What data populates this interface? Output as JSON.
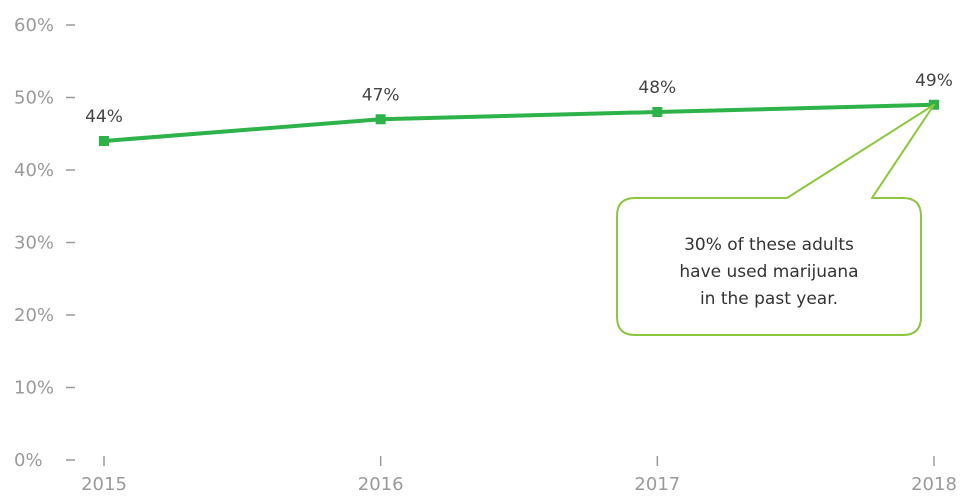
{
  "chart_data": {
    "type": "line",
    "title": "",
    "xlabel": "",
    "ylabel": "",
    "x": [
      "2015",
      "2016",
      "2017",
      "2018"
    ],
    "series": [
      {
        "values": [
          44,
          47,
          48,
          49
        ]
      }
    ],
    "data_labels": [
      "44%",
      "47%",
      "48%",
      "49%"
    ],
    "y_ticks": [
      "0%",
      "10%",
      "20%",
      "30%",
      "40%",
      "50%",
      "60%"
    ],
    "ylim": [
      0,
      60
    ],
    "grid": false,
    "colors": {
      "line": "#2db34a",
      "callout_border": "#8cc63f"
    },
    "annotation": {
      "lines": [
        "30% of these adults",
        "have used marijuana",
        "in the past year."
      ],
      "points_to": "2018"
    }
  }
}
